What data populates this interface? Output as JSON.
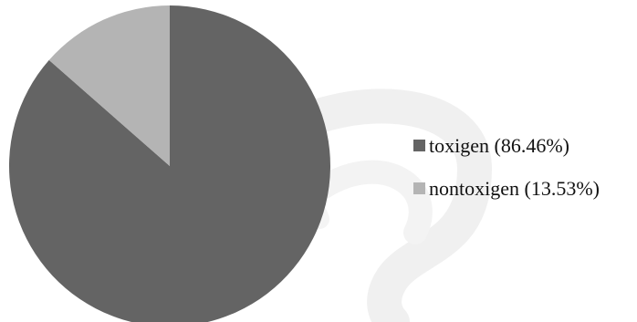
{
  "chart_data": {
    "type": "pie",
    "categories": [
      "toxigen",
      "nontoxigen"
    ],
    "values": [
      86.46,
      13.53
    ],
    "labels": [
      "toxigen (86.46%)",
      "nontoxigen (13.53%)"
    ],
    "colors": [
      "#646464",
      "#b4b4b4"
    ],
    "start_angle_deg": 0,
    "direction": "clockwise",
    "legend_position": "right"
  },
  "watermark": {
    "color": "#f0f0f0"
  }
}
